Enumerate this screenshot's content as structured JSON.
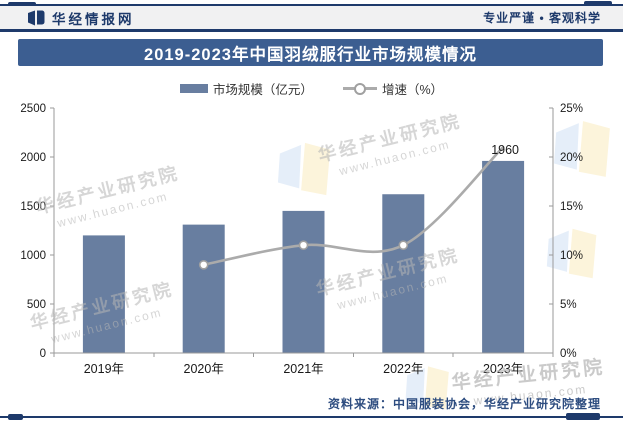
{
  "header": {
    "brand": "华经情报网",
    "slogan": "专业严谨 • 客观科学"
  },
  "title_banner": "2019-2023年中国羽绒服行业市场规模情况",
  "legend": {
    "market": "市场规模（亿元）",
    "growth": "增速（%）"
  },
  "source_note": "资料来源：中国服装协会，华经产业研究院整理",
  "watermark": {
    "name": "华经产业研究院",
    "site": "www.huaon.com"
  },
  "colors": {
    "navy": "#1e3a6b",
    "banner_bg": "#3c5e91",
    "bar": "#687ea0",
    "line": "#ababab",
    "header_bg": "#f1f1f2",
    "axis": "#9a9a9a",
    "text": "#1a1a1a",
    "wm_blue": "#d4e3f5",
    "wm_yellow": "#fbf0cf"
  },
  "chart_data": {
    "type": "bar",
    "title": "2019-2023年中国羽绒服行业市场规模情况",
    "categories": [
      "2019年",
      "2020年",
      "2021年",
      "2022年",
      "2023年"
    ],
    "series": [
      {
        "name": "市场规模（亿元）",
        "type": "bar",
        "axis": "left",
        "values": [
          1200,
          1310,
          1450,
          1620,
          1960
        ]
      },
      {
        "name": "增速（%）",
        "type": "line",
        "axis": "right",
        "values": [
          null,
          9,
          11,
          11,
          21
        ],
        "markers": [
          false,
          true,
          true,
          true,
          false
        ]
      }
    ],
    "point_labels": [
      {
        "series": 0,
        "index": 4,
        "text": "1960"
      }
    ],
    "left_axis": {
      "min": 0,
      "max": 2500,
      "step": 500,
      "tick_labels": [
        "0",
        "500",
        "1000",
        "1500",
        "2000",
        "2500"
      ]
    },
    "right_axis": {
      "min": 0,
      "max": 25,
      "step": 5,
      "tick_labels": [
        "0%",
        "5%",
        "10%",
        "15%",
        "20%",
        "25%"
      ]
    },
    "grid": false,
    "legend_position": "top"
  }
}
